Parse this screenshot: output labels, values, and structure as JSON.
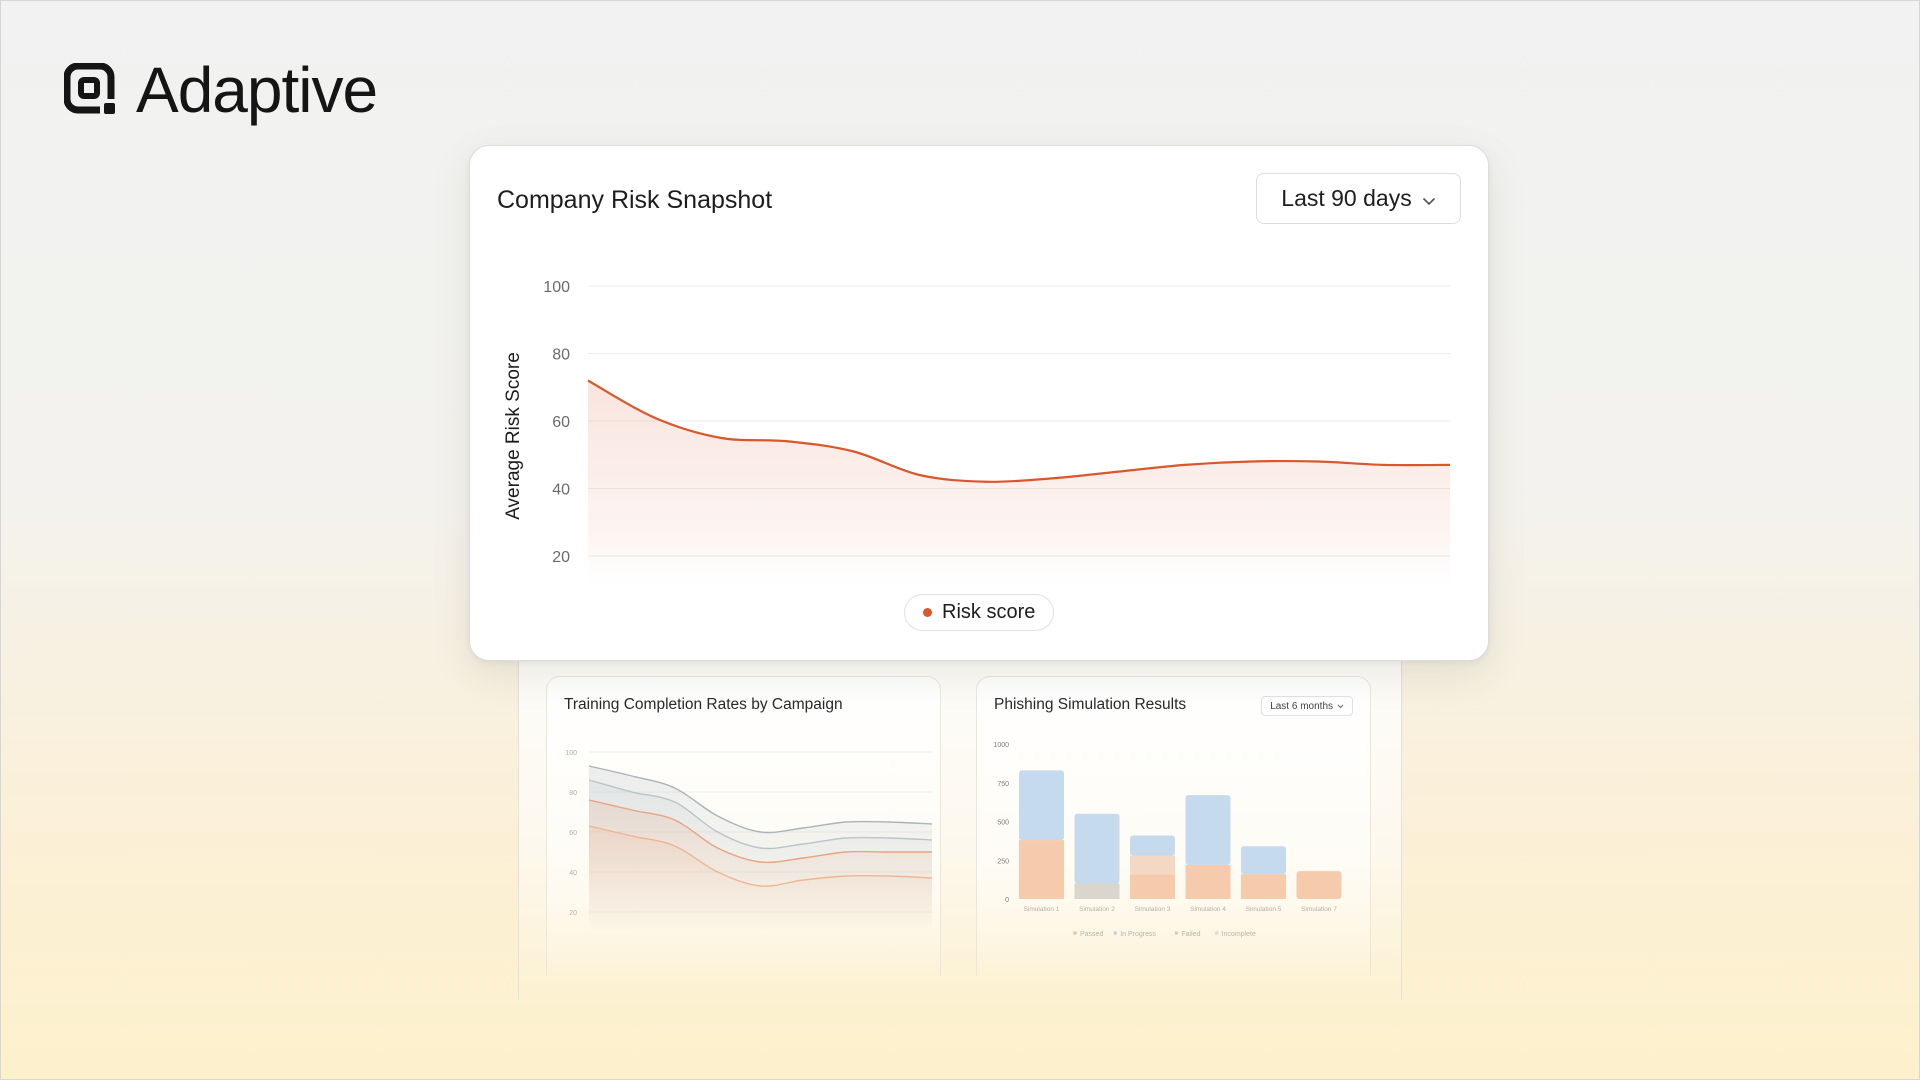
{
  "brand": {
    "name": "Adaptive",
    "icon": "adaptive-logo-icon"
  },
  "main_card": {
    "title": "Company Risk Snapshot",
    "range": {
      "selected": "Last 90 days",
      "icon": "chevron-down-icon"
    },
    "legend": {
      "label": "Risk score",
      "color": "#d9572b"
    }
  },
  "back_panels": {
    "training": {
      "title": "Training Completion Rates by Campaign"
    },
    "phishing": {
      "title": "Phishing Simulation Results",
      "range": "Last 6 months"
    }
  },
  "chart_data": [
    {
      "type": "area",
      "title": "Company Risk Snapshot",
      "ylabel": "Average Risk Score",
      "xlabel": "",
      "ylim": [
        20,
        100
      ],
      "yticks": [
        20,
        40,
        60,
        80,
        100
      ],
      "grid": true,
      "legend": "bottom-center",
      "series": [
        {
          "name": "Risk score",
          "color": "#d9572b",
          "values": [
            72,
            61,
            55,
            54,
            51,
            44,
            42,
            43,
            45,
            47,
            48,
            48,
            47,
            47
          ]
        }
      ]
    },
    {
      "type": "area",
      "title": "Training Completion Rates by Campaign",
      "ylim": [
        20,
        100
      ],
      "yticks": [
        20,
        40,
        60,
        80,
        100
      ],
      "series": [
        {
          "color": "#a9b4b8",
          "values": [
            93,
            88,
            82,
            68,
            60,
            62,
            65,
            65,
            64
          ]
        },
        {
          "color": "#b9c4cc",
          "values": [
            86,
            80,
            75,
            60,
            52,
            54,
            57,
            57,
            56
          ]
        },
        {
          "color": "#e9a37f",
          "values": [
            76,
            71,
            66,
            52,
            45,
            47,
            50,
            50,
            50
          ]
        },
        {
          "color": "#efb592",
          "values": [
            63,
            58,
            53,
            40,
            33,
            36,
            38,
            38,
            37
          ]
        }
      ]
    },
    {
      "type": "bar",
      "title": "Phishing Simulation Results",
      "categories": [
        "Simulation 1",
        "Simulation 2",
        "Simulation 3",
        "Simulation 4",
        "Simulation 5",
        "Simulation 7"
      ],
      "ylim": [
        0,
        1000
      ],
      "yticks": [
        0,
        250,
        500,
        750,
        1000
      ],
      "legend": "bottom",
      "series": [
        {
          "name": "Passed",
          "color": "#f4c2a0",
          "values": [
            380,
            0,
            160,
            220,
            160,
            180
          ]
        },
        {
          "name": "In Progress",
          "color": "#bcd3ec",
          "values": [
            450,
            450,
            130,
            450,
            180,
            0
          ]
        },
        {
          "name": "Failed",
          "color": "#d3cfc8",
          "values": [
            0,
            100,
            0,
            0,
            0,
            0
          ]
        },
        {
          "name": "Incomplete",
          "color": "#f1d2bb",
          "values": [
            0,
            0,
            120,
            0,
            0,
            0
          ]
        }
      ]
    }
  ]
}
